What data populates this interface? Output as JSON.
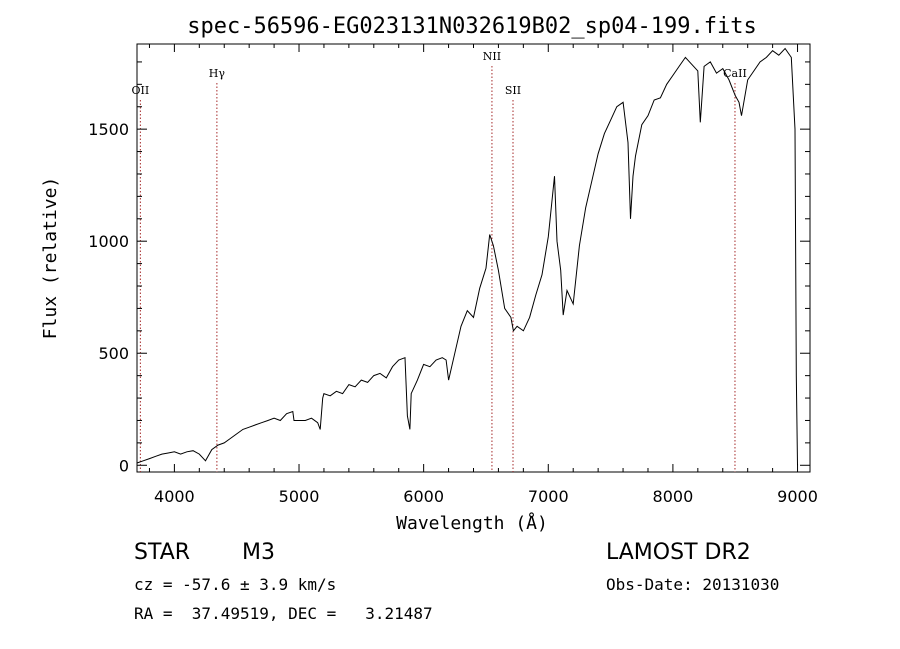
{
  "chart_data": {
    "type": "line",
    "title": "spec-56596-EG023131N032619B02_sp04-199.fits",
    "xlabel": "Wavelength (Å)",
    "ylabel": "Flux (relative)",
    "xlim": [
      3700,
      9100
    ],
    "ylim": [
      -30,
      1880
    ],
    "xticks": [
      4000,
      5000,
      6000,
      7000,
      8000,
      9000
    ],
    "yticks": [
      0,
      500,
      1000,
      1500
    ],
    "xtick_labels": [
      "4000",
      "5000",
      "6000",
      "7000",
      "8000",
      "9000"
    ],
    "ytick_labels": [
      "0",
      "500",
      "1000",
      "1500"
    ],
    "grid": false,
    "line_color": "#000000",
    "marker_color": "#a52a2a",
    "lines": [
      {
        "label": "OII",
        "x": 3727
      },
      {
        "label": "Hγ",
        "x": 4341
      },
      {
        "label": "NII",
        "x": 6548
      },
      {
        "label": "SII",
        "x": 6717
      },
      {
        "label": "CaII",
        "x": 8498
      }
    ],
    "series": [
      {
        "x": [
          3700,
          3750,
          3800,
          3850,
          3900,
          3950,
          4000,
          4050,
          4100,
          4150,
          4200,
          4250,
          4300,
          4350,
          4400,
          4450,
          4500,
          4550,
          4600,
          4650,
          4700,
          4750,
          4800,
          4850,
          4900,
          4950,
          4960,
          5000,
          5050,
          5100,
          5150,
          5170,
          5190,
          5200,
          5250,
          5300,
          5350,
          5400,
          5450,
          5500,
          5550,
          5600,
          5650,
          5700,
          5750,
          5800,
          5850,
          5870,
          5890,
          5900,
          5950,
          6000,
          6050,
          6100,
          6150,
          6180,
          6200,
          6250,
          6300,
          6350,
          6400,
          6450,
          6500,
          6530,
          6560,
          6600,
          6650,
          6700,
          6720,
          6750,
          6800,
          6850,
          6900,
          6950,
          7000,
          7050,
          7070,
          7100,
          7120,
          7150,
          7200,
          7250,
          7300,
          7350,
          7400,
          7450,
          7500,
          7550,
          7600,
          7640,
          7660,
          7680,
          7700,
          7750,
          7800,
          7850,
          7900,
          7950,
          8000,
          8050,
          8100,
          8150,
          8200,
          8220,
          8250,
          8300,
          8350,
          8400,
          8450,
          8500,
          8530,
          8550,
          8600,
          8650,
          8700,
          8750,
          8800,
          8850,
          8900,
          8950,
          8980,
          8990,
          9000
        ],
        "y": [
          10,
          20,
          30,
          40,
          50,
          55,
          60,
          50,
          60,
          65,
          50,
          20,
          70,
          90,
          100,
          120,
          140,
          160,
          170,
          180,
          190,
          200,
          210,
          200,
          230,
          240,
          200,
          200,
          200,
          210,
          190,
          160,
          300,
          320,
          310,
          330,
          320,
          360,
          350,
          380,
          370,
          400,
          410,
          390,
          440,
          470,
          480,
          220,
          160,
          320,
          380,
          450,
          440,
          470,
          480,
          470,
          380,
          500,
          620,
          690,
          660,
          790,
          880,
          1030,
          980,
          870,
          700,
          660,
          600,
          620,
          600,
          660,
          760,
          850,
          1020,
          1290,
          1000,
          870,
          670,
          780,
          720,
          980,
          1150,
          1270,
          1390,
          1480,
          1540,
          1600,
          1620,
          1440,
          1100,
          1290,
          1380,
          1520,
          1560,
          1630,
          1640,
          1700,
          1740,
          1780,
          1820,
          1790,
          1760,
          1530,
          1780,
          1800,
          1750,
          1770,
          1720,
          1650,
          1620,
          1560,
          1720,
          1760,
          1800,
          1820,
          1850,
          1830,
          1860,
          1820,
          1500,
          400,
          0
        ]
      }
    ]
  },
  "info": {
    "object_class": "STAR",
    "subclass": "M3",
    "survey": "LAMOST DR2",
    "redshift_text": "cz = -57.6 ± 3.9 km/s",
    "obs_date_text": "Obs-Date: 20131030",
    "coords_text": "RA =  37.49519, DEC =   3.21487"
  }
}
